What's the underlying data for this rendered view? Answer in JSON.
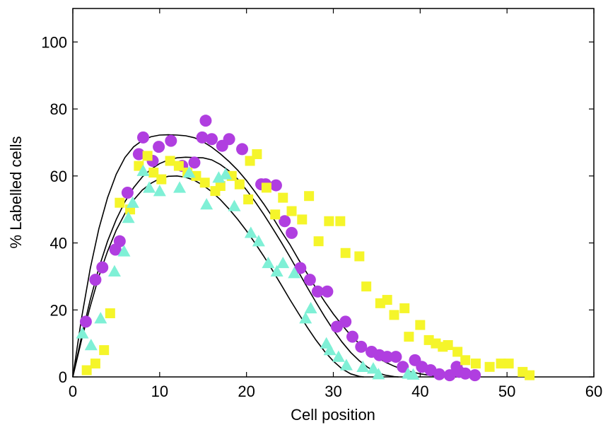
{
  "chart_data": {
    "type": "scatter",
    "title": "",
    "xlabel": "Cell position",
    "ylabel": "% Labelled cells",
    "xlim": [
      0,
      60
    ],
    "ylim": [
      0,
      110
    ],
    "xticks": [
      0,
      10,
      20,
      30,
      40,
      50,
      60
    ],
    "yticks": [
      0,
      20,
      40,
      60,
      80,
      100
    ],
    "grid": false,
    "legend": "none",
    "series": [
      {
        "marker": "circle",
        "color": "#b03ee0",
        "points": [
          [
            1.5,
            16.5
          ],
          [
            2.6,
            29
          ],
          [
            3.4,
            32.7
          ],
          [
            4.9,
            38
          ],
          [
            5.4,
            40.5
          ],
          [
            6.3,
            55
          ],
          [
            7.6,
            66.5
          ],
          [
            8.1,
            71.5
          ],
          [
            9.2,
            64.5
          ],
          [
            9.9,
            68.7
          ],
          [
            11.3,
            70.5
          ],
          [
            12.6,
            63
          ],
          [
            14,
            64
          ],
          [
            14.9,
            71.5
          ],
          [
            15.3,
            76.5
          ],
          [
            16,
            71
          ],
          [
            17.2,
            69
          ],
          [
            18,
            71
          ],
          [
            19.5,
            68
          ],
          [
            21.7,
            57.5
          ],
          [
            22.2,
            57.5
          ],
          [
            23.4,
            57.2
          ],
          [
            24.4,
            46.5
          ],
          [
            25.2,
            43
          ],
          [
            26.2,
            32.5
          ],
          [
            27.3,
            29
          ],
          [
            28.2,
            25.5
          ],
          [
            29.3,
            25.5
          ],
          [
            30.4,
            15
          ],
          [
            31.4,
            16.5
          ],
          [
            32.2,
            12
          ],
          [
            33.2,
            9
          ],
          [
            34.4,
            7.5
          ],
          [
            35.3,
            6.5
          ],
          [
            36.2,
            6
          ],
          [
            37.2,
            6
          ],
          [
            38,
            3
          ],
          [
            39.4,
            5
          ],
          [
            40.2,
            3
          ],
          [
            41.2,
            2
          ],
          [
            42.2,
            0.8
          ],
          [
            43.4,
            0.5
          ],
          [
            44.2,
            3
          ],
          [
            44.5,
            1.5
          ],
          [
            45.2,
            1
          ],
          [
            46.3,
            0.5
          ]
        ]
      },
      {
        "marker": "square",
        "color": "#f5f52a",
        "points": [
          [
            1.6,
            2
          ],
          [
            2.6,
            4
          ],
          [
            3.6,
            8
          ],
          [
            4.3,
            19
          ],
          [
            5.4,
            52
          ],
          [
            6.6,
            50
          ],
          [
            7.6,
            63
          ],
          [
            8.6,
            66
          ],
          [
            9.3,
            61
          ],
          [
            10.2,
            59
          ],
          [
            11.2,
            64.5
          ],
          [
            12.2,
            63
          ],
          [
            13.2,
            61
          ],
          [
            14.2,
            60
          ],
          [
            15.2,
            58
          ],
          [
            16.4,
            55.5
          ],
          [
            17,
            57
          ],
          [
            18.3,
            60
          ],
          [
            19.2,
            57.5
          ],
          [
            20.2,
            53
          ],
          [
            20.4,
            64.5
          ],
          [
            21.2,
            66.5
          ],
          [
            22.3,
            56.5
          ],
          [
            23.3,
            48.5
          ],
          [
            24.2,
            53.5
          ],
          [
            25.2,
            49.5
          ],
          [
            26.4,
            47
          ],
          [
            27.2,
            54
          ],
          [
            28.3,
            40.5
          ],
          [
            29.5,
            46.5
          ],
          [
            30.8,
            46.5
          ],
          [
            31.4,
            37
          ],
          [
            33,
            36
          ],
          [
            33.8,
            27
          ],
          [
            35.4,
            22
          ],
          [
            36.2,
            23
          ],
          [
            37,
            18.5
          ],
          [
            38.2,
            20.5
          ],
          [
            38.7,
            12
          ],
          [
            40,
            15.5
          ],
          [
            41,
            11
          ],
          [
            41.8,
            10
          ],
          [
            42.6,
            9
          ],
          [
            43.2,
            9.5
          ],
          [
            44.3,
            7.5
          ],
          [
            45.2,
            5
          ],
          [
            46.4,
            4
          ],
          [
            48,
            3
          ],
          [
            49.3,
            4
          ],
          [
            50.2,
            4
          ],
          [
            51.8,
            1.5
          ],
          [
            52.6,
            0.5
          ]
        ]
      },
      {
        "marker": "triangle",
        "color": "#7ff0d6",
        "points": [
          [
            1.1,
            13
          ],
          [
            2.1,
            9.5
          ],
          [
            3.2,
            17.5
          ],
          [
            4.8,
            31.5
          ],
          [
            5.9,
            37.5
          ],
          [
            6.4,
            47.5
          ],
          [
            6.9,
            52
          ],
          [
            8.1,
            61.5
          ],
          [
            8.8,
            56.5
          ],
          [
            10,
            55.5
          ],
          [
            12.3,
            56.5
          ],
          [
            13.4,
            61
          ],
          [
            15.4,
            51.5
          ],
          [
            16.8,
            59.5
          ],
          [
            17.6,
            60.5
          ],
          [
            18.6,
            51
          ],
          [
            20.5,
            43
          ],
          [
            21.4,
            40.5
          ],
          [
            22.5,
            34
          ],
          [
            23.5,
            31.5
          ],
          [
            24.2,
            34
          ],
          [
            25.5,
            31
          ],
          [
            26.8,
            17.5
          ],
          [
            27.4,
            20.5
          ],
          [
            29.2,
            10
          ],
          [
            29.6,
            8
          ],
          [
            30.6,
            6
          ],
          [
            31.5,
            3.5
          ],
          [
            33.4,
            3
          ],
          [
            34.6,
            2.5
          ],
          [
            35.2,
            0.8
          ],
          [
            38.6,
            1
          ],
          [
            39.2,
            0.7
          ]
        ]
      }
    ],
    "fit_curves": [
      {
        "color": "#000000",
        "points": [
          [
            0,
            0
          ],
          [
            1,
            17.5
          ],
          [
            2,
            32.3
          ],
          [
            3,
            44.2
          ],
          [
            4,
            53.5
          ],
          [
            5,
            60.5
          ],
          [
            6,
            65.5
          ],
          [
            7,
            68.7
          ],
          [
            8,
            70.6
          ],
          [
            9,
            71.7
          ],
          [
            10,
            72.2
          ],
          [
            11,
            72.3
          ],
          [
            12,
            72.2
          ],
          [
            13,
            72
          ],
          [
            14,
            71.4
          ],
          [
            15,
            70.2
          ],
          [
            16,
            68.6
          ],
          [
            17,
            66.6
          ],
          [
            18,
            64.3
          ],
          [
            19,
            61.7
          ],
          [
            20,
            58.6
          ],
          [
            21,
            55.2
          ],
          [
            22,
            51.6
          ],
          [
            23,
            47.7
          ],
          [
            24,
            43.5
          ],
          [
            25,
            39.5
          ],
          [
            26,
            35
          ],
          [
            27,
            30.8
          ],
          [
            28,
            26.5
          ],
          [
            29,
            22.5
          ],
          [
            30,
            18.8
          ],
          [
            31,
            15.5
          ],
          [
            32,
            12.4
          ],
          [
            33,
            9.9
          ],
          [
            34,
            7.7
          ],
          [
            35,
            5.9
          ],
          [
            36,
            4.4
          ],
          [
            37,
            3.2
          ],
          [
            38,
            2.2
          ],
          [
            39,
            1.5
          ],
          [
            40,
            0.9
          ],
          [
            41,
            0.5
          ],
          [
            42,
            0.2
          ],
          [
            43,
            0.05
          ],
          [
            44,
            0
          ]
        ]
      },
      {
        "color": "#000000",
        "points": [
          [
            0,
            0
          ],
          [
            1,
            12
          ],
          [
            2,
            23
          ],
          [
            3,
            32.5
          ],
          [
            4,
            40.5
          ],
          [
            5,
            47
          ],
          [
            6,
            52.3
          ],
          [
            7,
            56.5
          ],
          [
            8,
            59.7
          ],
          [
            9,
            62
          ],
          [
            10,
            63.7
          ],
          [
            11,
            64.8
          ],
          [
            12,
            65.4
          ],
          [
            13,
            65.6
          ],
          [
            14,
            65.5
          ],
          [
            15,
            65.4
          ],
          [
            16,
            64.8
          ],
          [
            17,
            63.4
          ],
          [
            18,
            61.5
          ],
          [
            19,
            59
          ],
          [
            20,
            55.8
          ],
          [
            21,
            52.3
          ],
          [
            22,
            48.5
          ],
          [
            23,
            44.4
          ],
          [
            24,
            40.2
          ],
          [
            25,
            35.8
          ],
          [
            26,
            31.3
          ],
          [
            27,
            26.7
          ],
          [
            28,
            22.3
          ],
          [
            29,
            18
          ],
          [
            30,
            14
          ],
          [
            31,
            10.4
          ],
          [
            32,
            7.3
          ],
          [
            33,
            4.8
          ],
          [
            34,
            2.8
          ],
          [
            35,
            1.3
          ],
          [
            36,
            0.5
          ],
          [
            37,
            0.1
          ],
          [
            37.5,
            0
          ]
        ]
      },
      {
        "color": "#000000",
        "points": [
          [
            0,
            0
          ],
          [
            1,
            11
          ],
          [
            2,
            21
          ],
          [
            3,
            30
          ],
          [
            4,
            37.5
          ],
          [
            5,
            43.8
          ],
          [
            6,
            48.8
          ],
          [
            7,
            52.8
          ],
          [
            8,
            55.8
          ],
          [
            9,
            57.8
          ],
          [
            10,
            59.2
          ],
          [
            11,
            59.9
          ],
          [
            12,
            60
          ],
          [
            13,
            59.6
          ],
          [
            14,
            58.7
          ],
          [
            15,
            57.2
          ],
          [
            16,
            55.3
          ],
          [
            17,
            52.9
          ],
          [
            18,
            50.1
          ],
          [
            19,
            47
          ],
          [
            20,
            43.6
          ],
          [
            21,
            39.9
          ],
          [
            22,
            36
          ],
          [
            23,
            31.8
          ],
          [
            24,
            27.5
          ],
          [
            25,
            23.1
          ],
          [
            26,
            18.9
          ],
          [
            27,
            14.8
          ],
          [
            28,
            11
          ],
          [
            29,
            7.6
          ],
          [
            30,
            4.7
          ],
          [
            31,
            2.4
          ],
          [
            32,
            0.9
          ],
          [
            33,
            0.15
          ],
          [
            33.5,
            0
          ]
        ]
      }
    ]
  }
}
